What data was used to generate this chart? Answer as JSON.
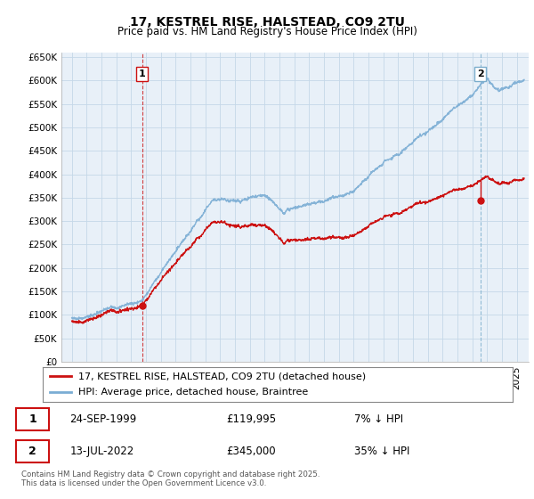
{
  "title": "17, KESTREL RISE, HALSTEAD, CO9 2TU",
  "subtitle": "Price paid vs. HM Land Registry's House Price Index (HPI)",
  "ylim": [
    0,
    660000
  ],
  "yticks": [
    0,
    50000,
    100000,
    150000,
    200000,
    250000,
    300000,
    350000,
    400000,
    450000,
    500000,
    550000,
    600000,
    650000
  ],
  "ytick_labels": [
    "£0",
    "£50K",
    "£100K",
    "£150K",
    "£200K",
    "£250K",
    "£300K",
    "£350K",
    "£400K",
    "£450K",
    "£500K",
    "£550K",
    "£600K",
    "£650K"
  ],
  "purchase1_date": 1999.73,
  "purchase1_price": 119995,
  "purchase1_label": "1",
  "purchase2_date": 2022.54,
  "purchase2_price": 345000,
  "purchase2_label": "2",
  "hpi_color": "#7aadd4",
  "price_color": "#cc1111",
  "vline1_color": "#cc1111",
  "vline1_style": "--",
  "vline2_color": "#7aadcc",
  "vline2_style": "--",
  "background_color": "#ffffff",
  "plot_bg_color": "#e8f0f8",
  "grid_color": "#c5d8e8",
  "legend_label_price": "17, KESTREL RISE, HALSTEAD, CO9 2TU (detached house)",
  "legend_label_hpi": "HPI: Average price, detached house, Braintree",
  "footer": "Contains HM Land Registry data © Crown copyright and database right 2025.\nThis data is licensed under the Open Government Licence v3.0.",
  "title_fontsize": 10,
  "subtitle_fontsize": 8.5,
  "tick_fontsize": 7.5,
  "legend_fontsize": 8,
  "table_fontsize": 8.5
}
